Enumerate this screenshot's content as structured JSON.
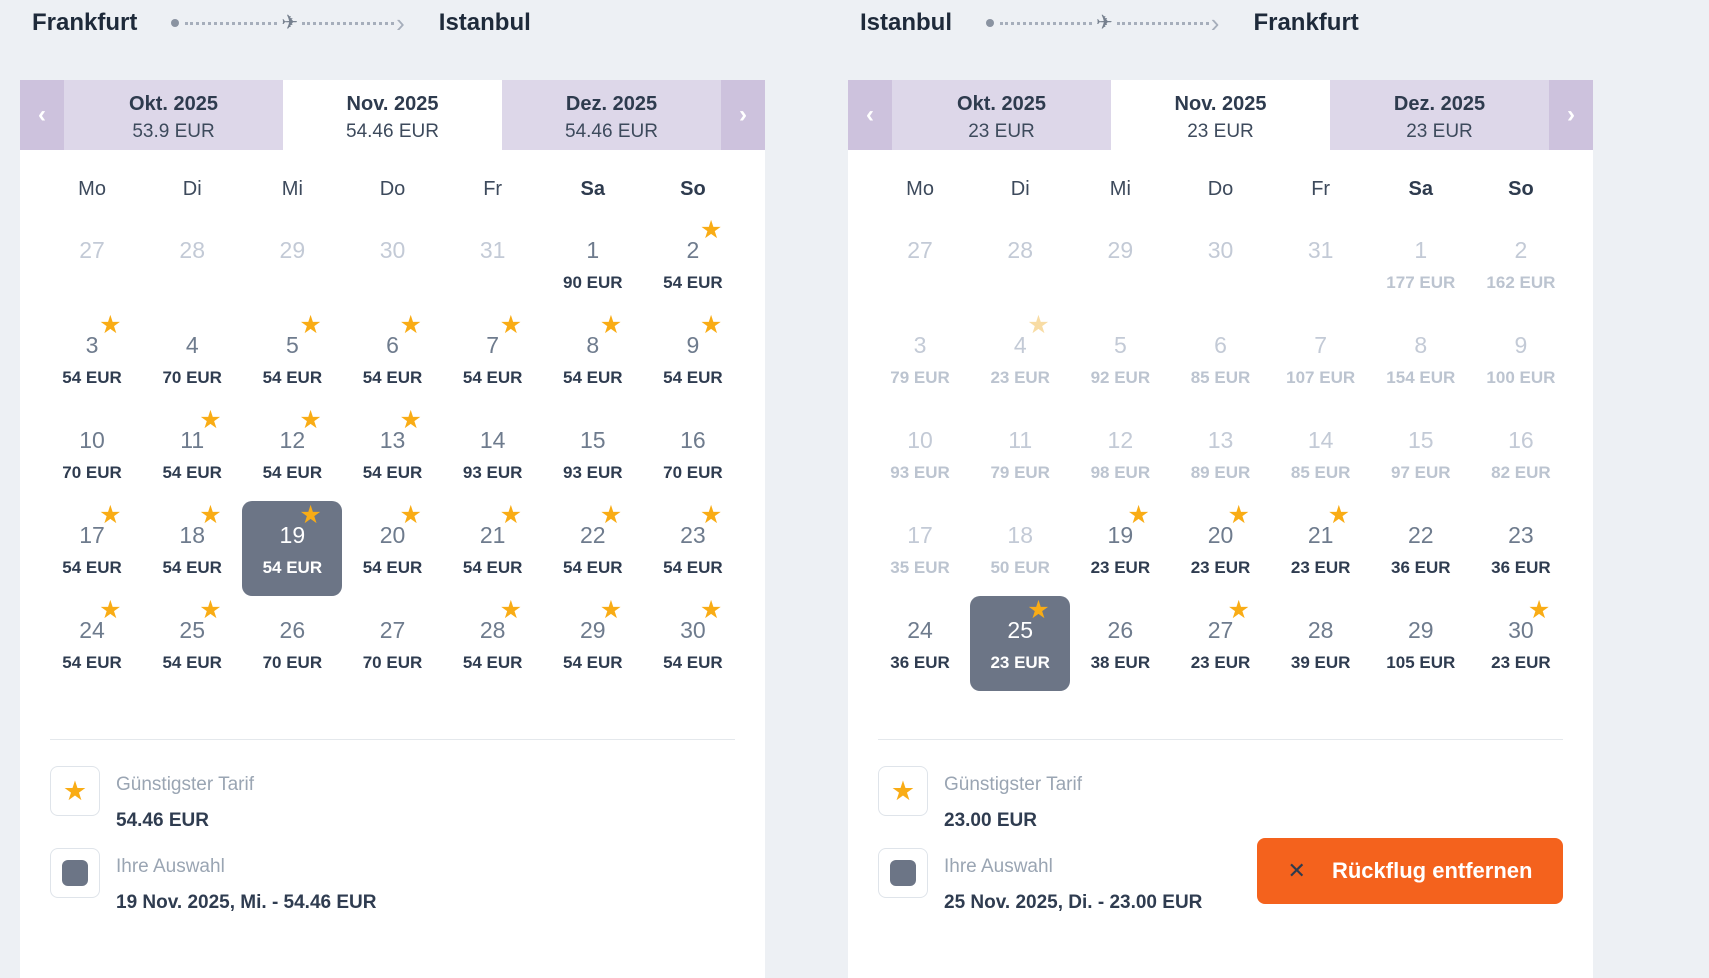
{
  "icons": {
    "star": "★",
    "plane": "✈",
    "close": "✕",
    "chevron_left": "‹",
    "chevron_right": "›"
  },
  "remove_button": {
    "label": "Rückflug entfernen",
    "icon": "close-icon"
  },
  "panels": [
    {
      "route": {
        "from": "Frankfurt",
        "to": "Istanbul"
      },
      "tabs": [
        {
          "label": "Okt. 2025",
          "price": "53.9 EUR",
          "active": false
        },
        {
          "label": "Nov. 2025",
          "price": "54.46 EUR",
          "active": true
        },
        {
          "label": "Dez. 2025",
          "price": "54.46 EUR",
          "active": false
        }
      ],
      "day_headers": [
        "Mo",
        "Di",
        "Mi",
        "Do",
        "Fr",
        "Sa",
        "So"
      ],
      "days": [
        {
          "day": 27,
          "disabled": true
        },
        {
          "day": 28,
          "disabled": true
        },
        {
          "day": 29,
          "disabled": true
        },
        {
          "day": 30,
          "disabled": true
        },
        {
          "day": 31,
          "disabled": true
        },
        {
          "day": 1,
          "price": "90 EUR"
        },
        {
          "day": 2,
          "price": "54 EUR",
          "star": true
        },
        {
          "day": 3,
          "price": "54 EUR",
          "star": true
        },
        {
          "day": 4,
          "price": "70 EUR"
        },
        {
          "day": 5,
          "price": "54 EUR",
          "star": true
        },
        {
          "day": 6,
          "price": "54 EUR",
          "star": true
        },
        {
          "day": 7,
          "price": "54 EUR",
          "star": true
        },
        {
          "day": 8,
          "price": "54 EUR",
          "star": true
        },
        {
          "day": 9,
          "price": "54 EUR",
          "star": true
        },
        {
          "day": 10,
          "price": "70 EUR"
        },
        {
          "day": 11,
          "price": "54 EUR",
          "star": true
        },
        {
          "day": 12,
          "price": "54 EUR",
          "star": true
        },
        {
          "day": 13,
          "price": "54 EUR",
          "star": true
        },
        {
          "day": 14,
          "price": "93 EUR"
        },
        {
          "day": 15,
          "price": "93 EUR"
        },
        {
          "day": 16,
          "price": "70 EUR"
        },
        {
          "day": 17,
          "price": "54 EUR",
          "star": true
        },
        {
          "day": 18,
          "price": "54 EUR",
          "star": true
        },
        {
          "day": 19,
          "price": "54 EUR",
          "star": true,
          "selected": true
        },
        {
          "day": 20,
          "price": "54 EUR",
          "star": true
        },
        {
          "day": 21,
          "price": "54 EUR",
          "star": true
        },
        {
          "day": 22,
          "price": "54 EUR",
          "star": true
        },
        {
          "day": 23,
          "price": "54 EUR",
          "star": true
        },
        {
          "day": 24,
          "price": "54 EUR",
          "star": true
        },
        {
          "day": 25,
          "price": "54 EUR",
          "star": true
        },
        {
          "day": 26,
          "price": "70 EUR"
        },
        {
          "day": 27,
          "price": "70 EUR"
        },
        {
          "day": 28,
          "price": "54 EUR",
          "star": true
        },
        {
          "day": 29,
          "price": "54 EUR",
          "star": true
        },
        {
          "day": 30,
          "price": "54 EUR",
          "star": true
        }
      ],
      "legend": {
        "cheapest_label": "Günstigster Tarif",
        "cheapest_value": "54.46 EUR",
        "selection_label": "Ihre Auswahl",
        "selection_value": "19 Nov. 2025, Mi. - 54.46 EUR"
      }
    },
    {
      "route": {
        "from": "Istanbul",
        "to": "Frankfurt"
      },
      "tabs": [
        {
          "label": "Okt. 2025",
          "price": "23 EUR",
          "active": false
        },
        {
          "label": "Nov. 2025",
          "price": "23 EUR",
          "active": true
        },
        {
          "label": "Dez. 2025",
          "price": "23 EUR",
          "active": false
        }
      ],
      "day_headers": [
        "Mo",
        "Di",
        "Mi",
        "Do",
        "Fr",
        "Sa",
        "So"
      ],
      "days": [
        {
          "day": 27,
          "disabled": true
        },
        {
          "day": 28,
          "disabled": true
        },
        {
          "day": 29,
          "disabled": true
        },
        {
          "day": 30,
          "disabled": true
        },
        {
          "day": 31,
          "disabled": true
        },
        {
          "day": 1,
          "price": "177 EUR",
          "disabled": true
        },
        {
          "day": 2,
          "price": "162 EUR",
          "disabled": true
        },
        {
          "day": 3,
          "price": "79 EUR",
          "disabled": true
        },
        {
          "day": 4,
          "price": "23 EUR",
          "disabled": true,
          "star": "faded"
        },
        {
          "day": 5,
          "price": "92 EUR",
          "disabled": true
        },
        {
          "day": 6,
          "price": "85 EUR",
          "disabled": true
        },
        {
          "day": 7,
          "price": "107 EUR",
          "disabled": true
        },
        {
          "day": 8,
          "price": "154 EUR",
          "disabled": true
        },
        {
          "day": 9,
          "price": "100 EUR",
          "disabled": true
        },
        {
          "day": 10,
          "price": "93 EUR",
          "disabled": true
        },
        {
          "day": 11,
          "price": "79 EUR",
          "disabled": true
        },
        {
          "day": 12,
          "price": "98 EUR",
          "disabled": true
        },
        {
          "day": 13,
          "price": "89 EUR",
          "disabled": true
        },
        {
          "day": 14,
          "price": "85 EUR",
          "disabled": true
        },
        {
          "day": 15,
          "price": "97 EUR",
          "disabled": true
        },
        {
          "day": 16,
          "price": "82 EUR",
          "disabled": true
        },
        {
          "day": 17,
          "price": "35 EUR",
          "disabled": true
        },
        {
          "day": 18,
          "price": "50 EUR",
          "disabled": true
        },
        {
          "day": 19,
          "price": "23 EUR",
          "star": true
        },
        {
          "day": 20,
          "price": "23 EUR",
          "star": true
        },
        {
          "day": 21,
          "price": "23 EUR",
          "star": true
        },
        {
          "day": 22,
          "price": "36 EUR"
        },
        {
          "day": 23,
          "price": "36 EUR"
        },
        {
          "day": 24,
          "price": "36 EUR"
        },
        {
          "day": 25,
          "price": "23 EUR",
          "star": true,
          "selected": true
        },
        {
          "day": 26,
          "price": "38 EUR"
        },
        {
          "day": 27,
          "price": "23 EUR",
          "star": true
        },
        {
          "day": 28,
          "price": "39 EUR"
        },
        {
          "day": 29,
          "price": "105 EUR"
        },
        {
          "day": 30,
          "price": "23 EUR",
          "star": true
        }
      ],
      "legend": {
        "cheapest_label": "Günstigster Tarif",
        "cheapest_value": "23.00 EUR",
        "selection_label": "Ihre Auswahl",
        "selection_value": "25 Nov. 2025, Di. - 23.00 EUR"
      }
    }
  ],
  "colors": {
    "page_background": "#edf0f4",
    "tab_inactive": "#ddd7e9",
    "tab_arrow": "#cdc2dd",
    "star": "#f9ac15",
    "selected_day": "#6c7586",
    "remove_button": "#f4621d",
    "text_dark": "#2f3c50",
    "text_muted": "#9aa5b3",
    "text_disabled": "#c3cad6"
  }
}
